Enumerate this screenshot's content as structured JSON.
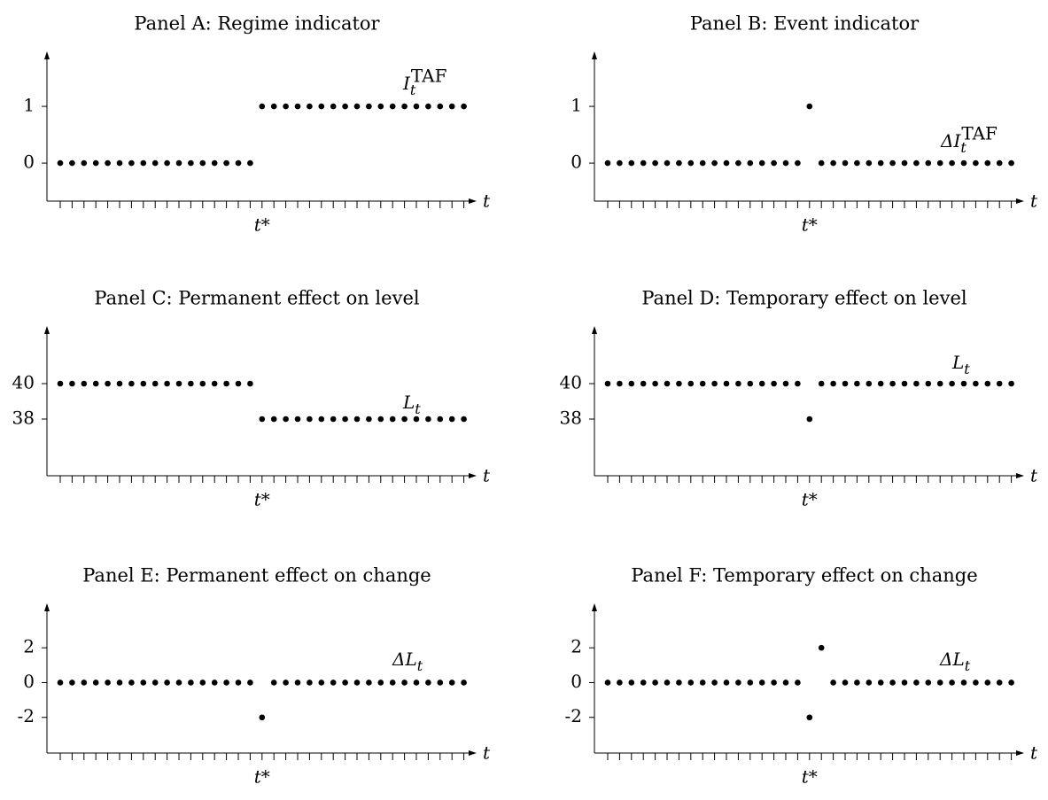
{
  "chart_data": [
    {
      "type": "dot",
      "title": "Panel A: Regime indicator",
      "x_label": "t",
      "color": "#000000",
      "categories": [
        null,
        null,
        null,
        null,
        null,
        null,
        null,
        null,
        null,
        null,
        null,
        null,
        null,
        null,
        null,
        null,
        null,
        "t*",
        null,
        null,
        null,
        null,
        null,
        null,
        null,
        null,
        null,
        null,
        null,
        null,
        null,
        null,
        null,
        null,
        null
      ],
      "values": [
        0,
        0,
        0,
        0,
        0,
        0,
        0,
        0,
        0,
        0,
        0,
        0,
        0,
        0,
        0,
        0,
        0,
        1,
        1,
        1,
        1,
        1,
        1,
        1,
        1,
        1,
        1,
        1,
        1,
        1,
        1,
        1,
        1,
        1,
        1
      ],
      "series_label": {
        "text": "I",
        "sub": "t",
        "sup": "TAF"
      },
      "ylim": [
        -0.67,
        1.86
      ],
      "yticks": [
        0,
        1
      ]
    },
    {
      "type": "dot",
      "title": "Panel B: Event indicator",
      "x_label": "t",
      "color": "#000000",
      "categories": [
        null,
        null,
        null,
        null,
        null,
        null,
        null,
        null,
        null,
        null,
        null,
        null,
        null,
        null,
        null,
        null,
        null,
        "t*",
        null,
        null,
        null,
        null,
        null,
        null,
        null,
        null,
        null,
        null,
        null,
        null,
        null,
        null,
        null,
        null,
        null
      ],
      "values": [
        0,
        0,
        0,
        0,
        0,
        0,
        0,
        0,
        0,
        0,
        0,
        0,
        0,
        0,
        0,
        0,
        0,
        1,
        0,
        0,
        0,
        0,
        0,
        0,
        0,
        0,
        0,
        0,
        0,
        0,
        0,
        0,
        0,
        0,
        0
      ],
      "series_label": {
        "text": "ΔI",
        "sub": "t",
        "sup": "TAF"
      },
      "ylim": [
        -0.67,
        1.86
      ],
      "yticks": [
        0,
        1
      ]
    },
    {
      "type": "dot",
      "title": "Panel C: Permanent effect on level",
      "x_label": "t",
      "color": "#000000",
      "categories": [
        null,
        null,
        null,
        null,
        null,
        null,
        null,
        null,
        null,
        null,
        null,
        null,
        null,
        null,
        null,
        null,
        null,
        "t*",
        null,
        null,
        null,
        null,
        null,
        null,
        null,
        null,
        null,
        null,
        null,
        null,
        null,
        null,
        null,
        null,
        null
      ],
      "values": [
        40,
        40,
        40,
        40,
        40,
        40,
        40,
        40,
        40,
        40,
        40,
        40,
        40,
        40,
        40,
        40,
        40,
        38,
        38,
        38,
        38,
        38,
        38,
        38,
        38,
        38,
        38,
        38,
        38,
        38,
        38,
        38,
        38,
        38,
        38
      ],
      "series_label": {
        "text": "L",
        "sub": "t"
      },
      "ylim": [
        34.8,
        42.9
      ],
      "yticks": [
        38,
        40
      ]
    },
    {
      "type": "dot",
      "title": "Panel D: Temporary effect on level",
      "x_label": "t",
      "color": "#000000",
      "categories": [
        null,
        null,
        null,
        null,
        null,
        null,
        null,
        null,
        null,
        null,
        null,
        null,
        null,
        null,
        null,
        null,
        null,
        "t*",
        null,
        null,
        null,
        null,
        null,
        null,
        null,
        null,
        null,
        null,
        null,
        null,
        null,
        null,
        null,
        null,
        null
      ],
      "values": [
        40,
        40,
        40,
        40,
        40,
        40,
        40,
        40,
        40,
        40,
        40,
        40,
        40,
        40,
        40,
        40,
        40,
        38,
        40,
        40,
        40,
        40,
        40,
        40,
        40,
        40,
        40,
        40,
        40,
        40,
        40,
        40,
        40,
        40,
        40
      ],
      "series_label": {
        "text": "L",
        "sub": "t"
      },
      "ylim": [
        34.8,
        42.9
      ],
      "yticks": [
        38,
        40
      ]
    },
    {
      "type": "dot",
      "title": "Panel E: Permanent effect on change",
      "x_label": "t",
      "color": "#000000",
      "categories": [
        null,
        null,
        null,
        null,
        null,
        null,
        null,
        null,
        null,
        null,
        null,
        null,
        null,
        null,
        null,
        null,
        null,
        "t*",
        null,
        null,
        null,
        null,
        null,
        null,
        null,
        null,
        null,
        null,
        null,
        null,
        null,
        null,
        null,
        null,
        null
      ],
      "values": [
        0,
        0,
        0,
        0,
        0,
        0,
        0,
        0,
        0,
        0,
        0,
        0,
        0,
        0,
        0,
        0,
        0,
        -2,
        0,
        0,
        0,
        0,
        0,
        0,
        0,
        0,
        0,
        0,
        0,
        0,
        0,
        0,
        0,
        0,
        0
      ],
      "series_label": {
        "text": "ΔL",
        "sub": "t"
      },
      "ylim": [
        -4.05,
        4.2
      ],
      "yticks": [
        -2,
        0,
        2
      ]
    },
    {
      "type": "dot",
      "title": "Panel F: Temporary effect on change",
      "x_label": "t",
      "color": "#000000",
      "categories": [
        null,
        null,
        null,
        null,
        null,
        null,
        null,
        null,
        null,
        null,
        null,
        null,
        null,
        null,
        null,
        null,
        null,
        "t*",
        null,
        null,
        null,
        null,
        null,
        null,
        null,
        null,
        null,
        null,
        null,
        null,
        null,
        null,
        null,
        null,
        null
      ],
      "values": [
        0,
        0,
        0,
        0,
        0,
        0,
        0,
        0,
        0,
        0,
        0,
        0,
        0,
        0,
        0,
        0,
        0,
        -2,
        2,
        0,
        0,
        0,
        0,
        0,
        0,
        0,
        0,
        0,
        0,
        0,
        0,
        0,
        0,
        0,
        0
      ],
      "series_label": {
        "text": "ΔL",
        "sub": "t"
      },
      "ylim": [
        -4.05,
        4.2
      ],
      "yticks": [
        -2,
        0,
        2
      ]
    }
  ]
}
